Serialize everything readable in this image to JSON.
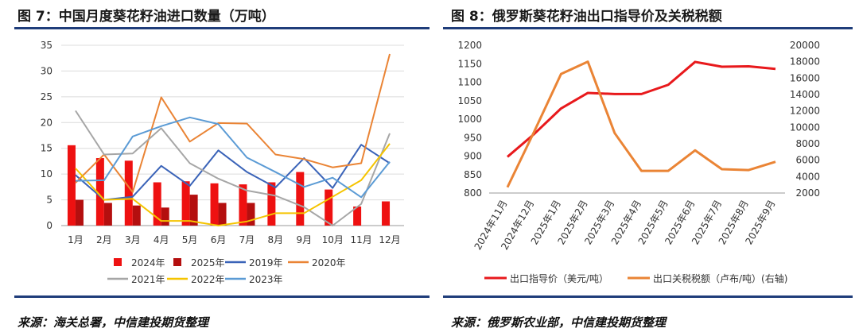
{
  "charts": [
    {
      "title": "图 7：中国月度葵花籽油进口数量（万吨）",
      "source": "来源：海关总署，中信建投期货整理"
    },
    {
      "title": "图 8：俄罗斯葵花籽油出口指导价及关税税额",
      "source": "来源：俄罗斯农业部，中信建投期货整理"
    }
  ],
  "chart_data": [
    {
      "type": "bar",
      "title": "图 7：中国月度葵花籽油进口数量（万吨）",
      "categories": [
        "1月",
        "2月",
        "3月",
        "4月",
        "5月",
        "6月",
        "7月",
        "8月",
        "9月",
        "10月",
        "11月",
        "12月"
      ],
      "ylim": [
        0,
        35
      ],
      "yticks": [
        "0",
        "5",
        "10",
        "15",
        "20",
        "25",
        "30",
        "35"
      ],
      "grid": true,
      "legend_position": "bottom",
      "colors": {
        "2024年": "#ee1111",
        "2025年": "#b40f0f",
        "2019年": "#3a63b8",
        "2020年": "#ea8435",
        "2021年": "#a6a6a6",
        "2022年": "#f5c400",
        "2023年": "#5b9bd5"
      },
      "bar_series": [
        {
          "name": "2024年",
          "values": [
            15.6,
            13.1,
            12.6,
            8.4,
            8.6,
            8.2,
            8.0,
            8.4,
            10.4,
            7.0,
            3.7,
            4.7
          ]
        },
        {
          "name": "2025年",
          "values": [
            5.0,
            4.4,
            3.9,
            3.5,
            6.0,
            4.4,
            4.4,
            null,
            null,
            null,
            null,
            null
          ]
        }
      ],
      "line_series": [
        {
          "name": "2019年",
          "values": [
            9.8,
            5.0,
            5.6,
            11.6,
            7.7,
            14.6,
            10.4,
            7.4,
            13.1,
            7.3,
            15.7,
            12.1
          ]
        },
        {
          "name": "2020年",
          "values": [
            8.3,
            13.8,
            6.5,
            24.9,
            16.3,
            19.9,
            19.8,
            13.8,
            12.9,
            11.3,
            12.1,
            33.3
          ]
        },
        {
          "name": "2021年",
          "values": [
            22.3,
            13.8,
            14.0,
            18.9,
            12.1,
            9.1,
            6.8,
            5.8,
            3.6,
            0.0,
            4.2,
            17.9
          ]
        },
        {
          "name": "2022年",
          "values": [
            11.1,
            5.0,
            5.2,
            0.9,
            0.9,
            0.0,
            0.8,
            2.4,
            2.4,
            5.6,
            8.8,
            15.9
          ]
        },
        {
          "name": "2023年",
          "values": [
            8.7,
            8.8,
            17.3,
            19.3,
            21.0,
            19.7,
            13.2,
            10.4,
            7.5,
            9.3,
            5.5,
            12.4
          ]
        }
      ]
    },
    {
      "type": "line",
      "title": "图 8：俄罗斯葵花籽油出口指导价及关税税额",
      "categories": [
        "2024年11月",
        "2024年12月",
        "2025年1月",
        "2025年2月",
        "2025年3月",
        "2025年4月",
        "2025年5月",
        "2025年6月",
        "2025年7月",
        "2025年8月",
        "2025年9月"
      ],
      "ylim": [
        800,
        1200
      ],
      "yticks": [
        "800",
        "850",
        "900",
        "950",
        "1000",
        "1050",
        "1100",
        "1150",
        "1200"
      ],
      "y2lim": [
        2000,
        20000
      ],
      "y2ticks": [
        "2000",
        "4000",
        "6000",
        "8000",
        "10000",
        "12000",
        "14000",
        "16000",
        "18000",
        "20000"
      ],
      "grid": false,
      "legend_position": "bottom",
      "series": [
        {
          "name": "出口指导价（美元/吨）",
          "axis": "left",
          "color": "#e8191c",
          "values": [
            898,
            960,
            1029,
            1071,
            1068,
            1068,
            1093,
            1155,
            1142,
            1143,
            1136
          ]
        },
        {
          "name": "出口关税税额（卢布/吨）(右轴)",
          "axis": "right",
          "color": "#ea8435",
          "values": [
            2700,
            9500,
            16500,
            18000,
            9300,
            4700,
            4700,
            7200,
            4900,
            4800,
            5800
          ]
        }
      ]
    }
  ]
}
